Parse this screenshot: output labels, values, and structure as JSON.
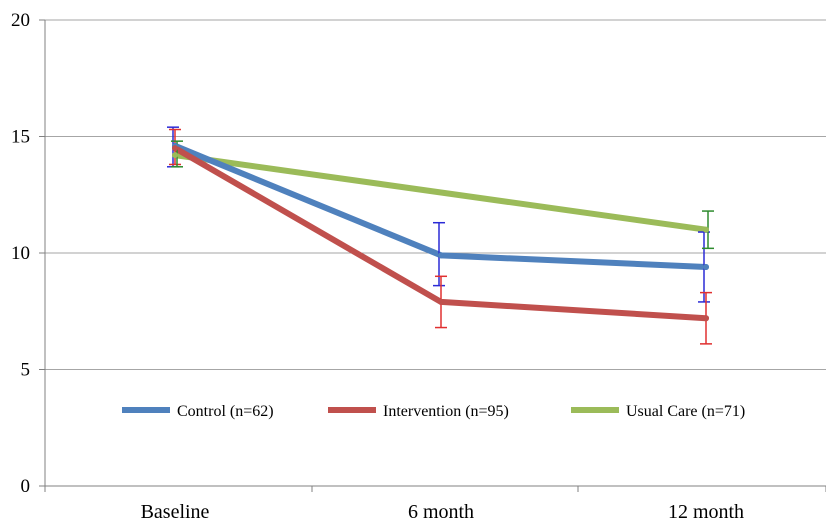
{
  "chart_data": {
    "type": "line",
    "title": "",
    "xlabel": "",
    "ylabel": "",
    "categories": [
      "Baseline",
      "6 month",
      "12 month"
    ],
    "ylim": [
      0,
      20
    ],
    "yticks": [
      0,
      5,
      10,
      15,
      20
    ],
    "grid": true,
    "legend_position": "bottom-inside",
    "series": [
      {
        "name": "Control (n=62)",
        "color": "#4f81bd",
        "values": [
          14.6,
          9.9,
          9.4
        ],
        "err_low": [
          13.7,
          8.6,
          7.9
        ],
        "err_high": [
          15.4,
          11.3,
          10.9
        ]
      },
      {
        "name": "Intervention (n=95)",
        "color": "#c0504d",
        "values": [
          14.5,
          7.9,
          7.2
        ],
        "err_low": [
          13.8,
          6.8,
          6.1
        ],
        "err_high": [
          15.3,
          9.0,
          8.3
        ]
      },
      {
        "name": "Usual Care (n=71)",
        "color": "#9bbb59",
        "values": [
          14.2,
          null,
          11.0
        ],
        "err_low": [
          13.7,
          null,
          10.2
        ],
        "err_high": [
          14.8,
          null,
          11.8
        ]
      }
    ]
  }
}
